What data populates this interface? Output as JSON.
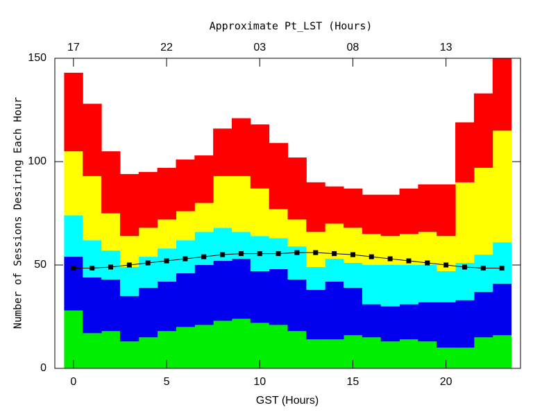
{
  "chart_data": {
    "type": "bar",
    "stacked": true,
    "x_label": "GST (Hours)",
    "y_label": "Number of Sessions Desiring Each Hour",
    "x2_label": "Approximate Pt_LST (Hours)",
    "x": [
      0,
      1,
      2,
      3,
      4,
      5,
      6,
      7,
      8,
      9,
      10,
      11,
      12,
      13,
      14,
      15,
      16,
      17,
      18,
      19,
      20,
      21,
      22,
      23
    ],
    "xlim": [
      -1,
      24
    ],
    "ylim": [
      0,
      150
    ],
    "xticks": [
      0,
      5,
      10,
      15,
      20
    ],
    "yticks": [
      0,
      50,
      100,
      150
    ],
    "x2ticks": [
      {
        "value": 0,
        "label": "17"
      },
      {
        "value": 5,
        "label": "22"
      },
      {
        "value": 10,
        "label": "03"
      },
      {
        "value": 15,
        "label": "08"
      },
      {
        "value": 20,
        "label": "13"
      }
    ],
    "series": [
      {
        "color": "#00ee00",
        "values": [
          28,
          17,
          18,
          13,
          15,
          18,
          20,
          21,
          23,
          24,
          22,
          21,
          18,
          14,
          14,
          16,
          15,
          13,
          14,
          13,
          10,
          10,
          15,
          16
        ]
      },
      {
        "color": "#0000ee",
        "values": [
          26,
          27,
          25,
          22,
          24,
          24,
          26,
          29,
          29,
          29,
          25,
          27,
          25,
          24,
          28,
          23,
          16,
          17,
          17,
          19,
          22,
          23,
          22,
          25
        ]
      },
      {
        "color": "#00ffff",
        "values": [
          20,
          18,
          14,
          14,
          15,
          16,
          16,
          16,
          16,
          13,
          17,
          15,
          16,
          11,
          11,
          12,
          19,
          20,
          19,
          18,
          15,
          18,
          18,
          20
        ]
      },
      {
        "color": "#ffff00",
        "values": [
          31,
          31,
          18,
          15,
          14,
          14,
          14,
          14,
          25,
          27,
          23,
          14,
          13,
          17,
          17,
          17,
          15,
          14,
          15,
          16,
          17,
          39,
          42,
          54
        ]
      },
      {
        "color": "#ff0000",
        "values": [
          38,
          35,
          30,
          30,
          27,
          25,
          25,
          23,
          23,
          28,
          31,
          32,
          30,
          24,
          18,
          19,
          19,
          20,
          22,
          23,
          25,
          29,
          36,
          35
        ]
      },
      {
        "type": "line",
        "color": "#000000",
        "values": [
          48.5,
          48.5,
          49,
          50,
          51,
          52,
          53,
          54,
          55,
          55.5,
          55.5,
          55.5,
          56,
          56,
          55.5,
          55,
          54,
          53,
          52,
          51,
          50,
          49,
          48.5,
          48.5
        ]
      }
    ]
  }
}
